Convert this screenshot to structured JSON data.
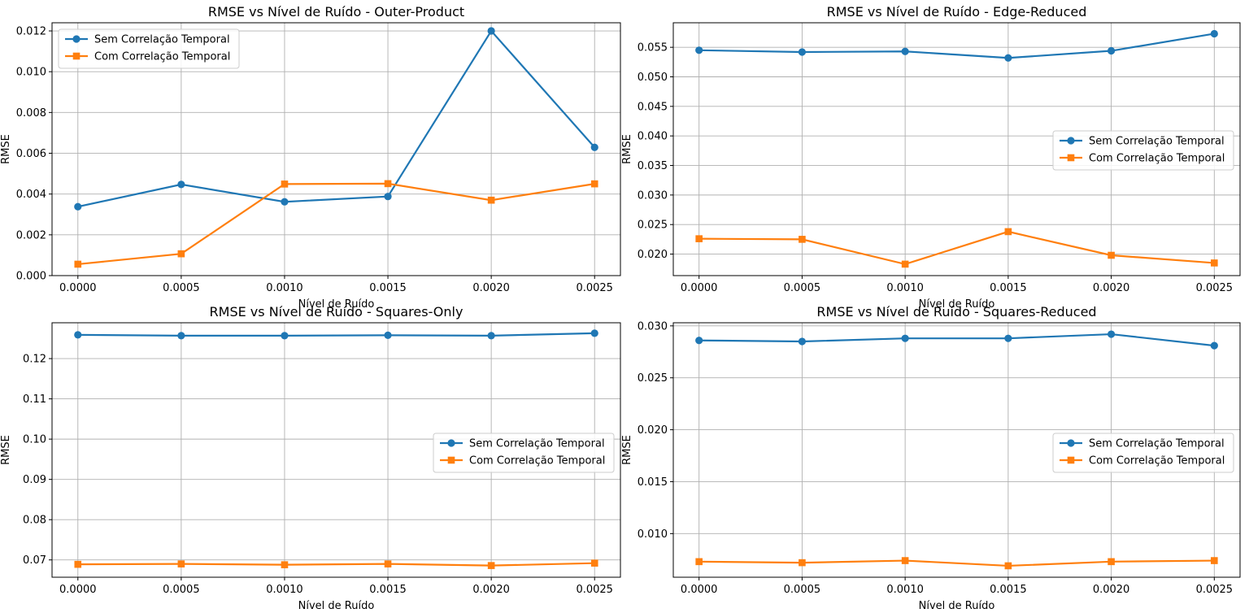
{
  "colors": {
    "series1": "#1f77b4",
    "series2": "#ff7f0e",
    "grid": "#b0b0b0"
  },
  "chart_data": [
    {
      "type": "line",
      "title": "RMSE vs Nível de Ruído - Outer-Product",
      "xlabel": "Nível de Ruído",
      "ylabel": "RMSE",
      "x": [
        0.0,
        0.0005,
        0.001,
        0.0015,
        0.002,
        0.0025
      ],
      "x_ticks": [
        "0.0000",
        "0.0005",
        "0.0010",
        "0.0015",
        "0.0020",
        "0.0025"
      ],
      "xlim": [
        -0.000125,
        0.002625
      ],
      "ylim": [
        0,
        0.0124
      ],
      "y_ticks": [
        "0.000",
        "0.002",
        "0.004",
        "0.006",
        "0.008",
        "0.010",
        "0.012"
      ],
      "y_tick_values": [
        0,
        0.002,
        0.004,
        0.006,
        0.008,
        0.01,
        0.012
      ],
      "grid": true,
      "legend": "upper-left",
      "series": [
        {
          "name": "Sem Correlação Temporal",
          "marker": "circle",
          "values": [
            0.00338,
            0.00447,
            0.00362,
            0.00388,
            0.012,
            0.00629
          ]
        },
        {
          "name": "Com Correlação Temporal",
          "marker": "square",
          "values": [
            0.00056,
            0.00107,
            0.00449,
            0.00451,
            0.0037,
            0.0045
          ]
        }
      ]
    },
    {
      "type": "line",
      "title": "RMSE vs Nível de Ruído - Edge-Reduced",
      "xlabel": "Nível de Ruído",
      "ylabel": "RMSE",
      "x": [
        0.0,
        0.0005,
        0.001,
        0.0015,
        0.002,
        0.0025
      ],
      "x_ticks": [
        "0.0000",
        "0.0005",
        "0.0010",
        "0.0015",
        "0.0020",
        "0.0025"
      ],
      "xlim": [
        -0.000125,
        0.002625
      ],
      "ylim": [
        0.01636,
        0.05915
      ],
      "y_ticks": [
        "0.020",
        "0.025",
        "0.030",
        "0.035",
        "0.040",
        "0.045",
        "0.050",
        "0.055"
      ],
      "y_tick_values": [
        0.02,
        0.025,
        0.03,
        0.035,
        0.04,
        0.045,
        0.05,
        0.055
      ],
      "grid": true,
      "legend": "center-right",
      "series": [
        {
          "name": "Sem Correlação Temporal",
          "marker": "circle",
          "values": [
            0.0545,
            0.0542,
            0.0543,
            0.0532,
            0.0544,
            0.0573
          ]
        },
        {
          "name": "Com Correlação Temporal",
          "marker": "square",
          "values": [
            0.0226,
            0.0225,
            0.0183,
            0.0238,
            0.0198,
            0.0185
          ]
        }
      ]
    },
    {
      "type": "line",
      "title": "RMSE vs Nível de Ruído - Squares-Only",
      "xlabel": "Nível de Ruído",
      "ylabel": "RMSE",
      "x": [
        0.0,
        0.0005,
        0.001,
        0.0015,
        0.002,
        0.0025
      ],
      "x_ticks": [
        "0.0000",
        "0.0005",
        "0.0010",
        "0.0015",
        "0.0020",
        "0.0025"
      ],
      "xlim": [
        -0.000125,
        0.002625
      ],
      "ylim": [
        0.0657,
        0.1289
      ],
      "y_ticks": [
        "0.07",
        "0.08",
        "0.09",
        "0.10",
        "0.11",
        "0.12"
      ],
      "y_tick_values": [
        0.07,
        0.08,
        0.09,
        0.1,
        0.11,
        0.12
      ],
      "grid": true,
      "legend": "center-right",
      "series": [
        {
          "name": "Sem Correlação Temporal",
          "marker": "circle",
          "values": [
            0.1259,
            0.1257,
            0.1257,
            0.1258,
            0.1257,
            0.1263
          ]
        },
        {
          "name": "Com Correlação Temporal",
          "marker": "square",
          "values": [
            0.0689,
            0.069,
            0.0688,
            0.069,
            0.0686,
            0.0692
          ]
        }
      ]
    },
    {
      "type": "line",
      "title": "RMSE vs Nível de Ruído - Squares-Reduced",
      "xlabel": "Nível de Ruído",
      "ylabel": "RMSE",
      "x": [
        0.0,
        0.0005,
        0.001,
        0.0015,
        0.002,
        0.0025
      ],
      "x_ticks": [
        "0.0000",
        "0.0005",
        "0.0010",
        "0.0015",
        "0.0020",
        "0.0025"
      ],
      "xlim": [
        -0.000125,
        0.002625
      ],
      "ylim": [
        0.0058,
        0.0303
      ],
      "y_ticks": [
        "0.010",
        "0.015",
        "0.020",
        "0.025",
        "0.030"
      ],
      "y_tick_values": [
        0.01,
        0.015,
        0.02,
        0.025,
        0.03
      ],
      "grid": true,
      "legend": "center-right",
      "series": [
        {
          "name": "Sem Correlação Temporal",
          "marker": "circle",
          "values": [
            0.0286,
            0.0285,
            0.0288,
            0.0288,
            0.0292,
            0.0281
          ]
        },
        {
          "name": "Com Correlação Temporal",
          "marker": "square",
          "values": [
            0.0073,
            0.0072,
            0.0074,
            0.0069,
            0.0073,
            0.0074
          ]
        }
      ]
    }
  ]
}
